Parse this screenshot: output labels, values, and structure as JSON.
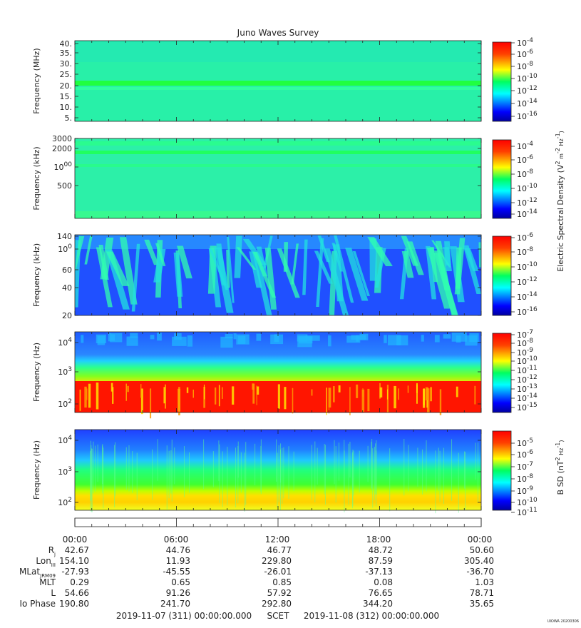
{
  "title": "Juno Waves Survey",
  "footer_tag": "UIOWA 20200306",
  "panels": [
    {
      "ylabel": "Frequency (MHz)",
      "yticks": [
        "40.",
        "35.",
        "30.",
        "25.",
        "20.",
        "15.",
        "10.",
        "5."
      ],
      "cbar_ticks": [
        "10-4",
        "10-6",
        "10-8",
        "10-10",
        "10-12",
        "10-14",
        "10-16"
      ]
    },
    {
      "ylabel": "Frequency (kHz)",
      "yticks": [
        "3000",
        "2000",
        "1000",
        "500"
      ],
      "cbar_ticks": [
        "10-4",
        "10-6",
        "10-8",
        "10-10",
        "10-12",
        "10-14"
      ]
    },
    {
      "ylabel": "Frequency (kHz)",
      "yticks": [
        "140",
        "100",
        "60",
        "40",
        "20"
      ],
      "cbar_ticks": [
        "10-6",
        "10-8",
        "10-10",
        "10-12",
        "10-14",
        "10-16"
      ]
    },
    {
      "ylabel": "Frequency (Hz)",
      "yticks": [
        "104",
        "103",
        "102"
      ],
      "cbar_ticks": [
        "10-7",
        "10-8",
        "10-9",
        "10-10",
        "10-11",
        "10-12",
        "10-13",
        "10-14",
        "10-15"
      ]
    },
    {
      "ylabel": "Frequency (Hz)",
      "yticks": [
        "104",
        "103",
        "102"
      ],
      "cbar_ticks": [
        "10-5",
        "10-6",
        "10-7",
        "10-8",
        "10-9",
        "10-10",
        "10-11"
      ]
    }
  ],
  "cbar_label_electric": "Electric Spectral Density (V2 m-2 Hz-1)",
  "cbar_label_magnetic": "B SD (nT2 Hz-1)",
  "ephemeris": {
    "times": [
      "00:00",
      "06:00",
      "12:00",
      "18:00",
      "00:00"
    ],
    "rows": [
      {
        "label": "Rj",
        "values": [
          "42.67",
          "44.76",
          "46.77",
          "48.72",
          "50.60"
        ]
      },
      {
        "label": "LonIII",
        "values": [
          "154.10",
          "11.93",
          "229.80",
          "87.59",
          "305.40"
        ]
      },
      {
        "label": "MLatJRM09",
        "values": [
          "-27.93",
          "-45.55",
          "-26.01",
          "-37.13",
          "-36.70"
        ]
      },
      {
        "label": "MLT",
        "values": [
          "0.29",
          "0.65",
          "0.85",
          "0.08",
          "1.03"
        ]
      },
      {
        "label": "L",
        "values": [
          "54.66",
          "91.26",
          "57.92",
          "76.65",
          "78.71"
        ]
      },
      {
        "label": "Io Phase",
        "values": [
          "190.80",
          "241.70",
          "292.80",
          "344.20",
          "35.65"
        ]
      }
    ]
  },
  "footer": {
    "start": "2019-11-07 (311) 00:00:00.000",
    "mid": "SCET",
    "end": "2019-11-08 (312) 00:00:00.000"
  },
  "chart_data": [
    {
      "type": "heatmap",
      "title": "Juno Waves Survey",
      "ylabel": "Frequency (MHz)",
      "ylim": [
        3,
        41
      ],
      "x": [
        "2019-11-07 00:00",
        "2019-11-08 00:00"
      ],
      "color_range": [
        "10^-16",
        "10^-4"
      ]
    },
    {
      "type": "heatmap",
      "ylabel": "Frequency (kHz)",
      "ylim": [
        150,
        3000
      ],
      "scale": "log",
      "color_range": [
        "10^-15",
        "10^-4"
      ]
    },
    {
      "type": "heatmap",
      "ylabel": "Frequency (kHz)",
      "ylim": [
        20,
        140
      ],
      "scale": "log",
      "color_range": [
        "10^-16",
        "10^-6"
      ]
    },
    {
      "type": "heatmap",
      "ylabel": "Frequency (Hz)",
      "ylim": [
        50,
        20000
      ],
      "scale": "log",
      "color_range": [
        "10^-15",
        "10^-7"
      ]
    },
    {
      "type": "heatmap",
      "ylabel": "Frequency (Hz)",
      "ylim": [
        50,
        20000
      ],
      "scale": "log",
      "color_range": [
        "10^-11",
        "10^-5"
      ]
    }
  ]
}
